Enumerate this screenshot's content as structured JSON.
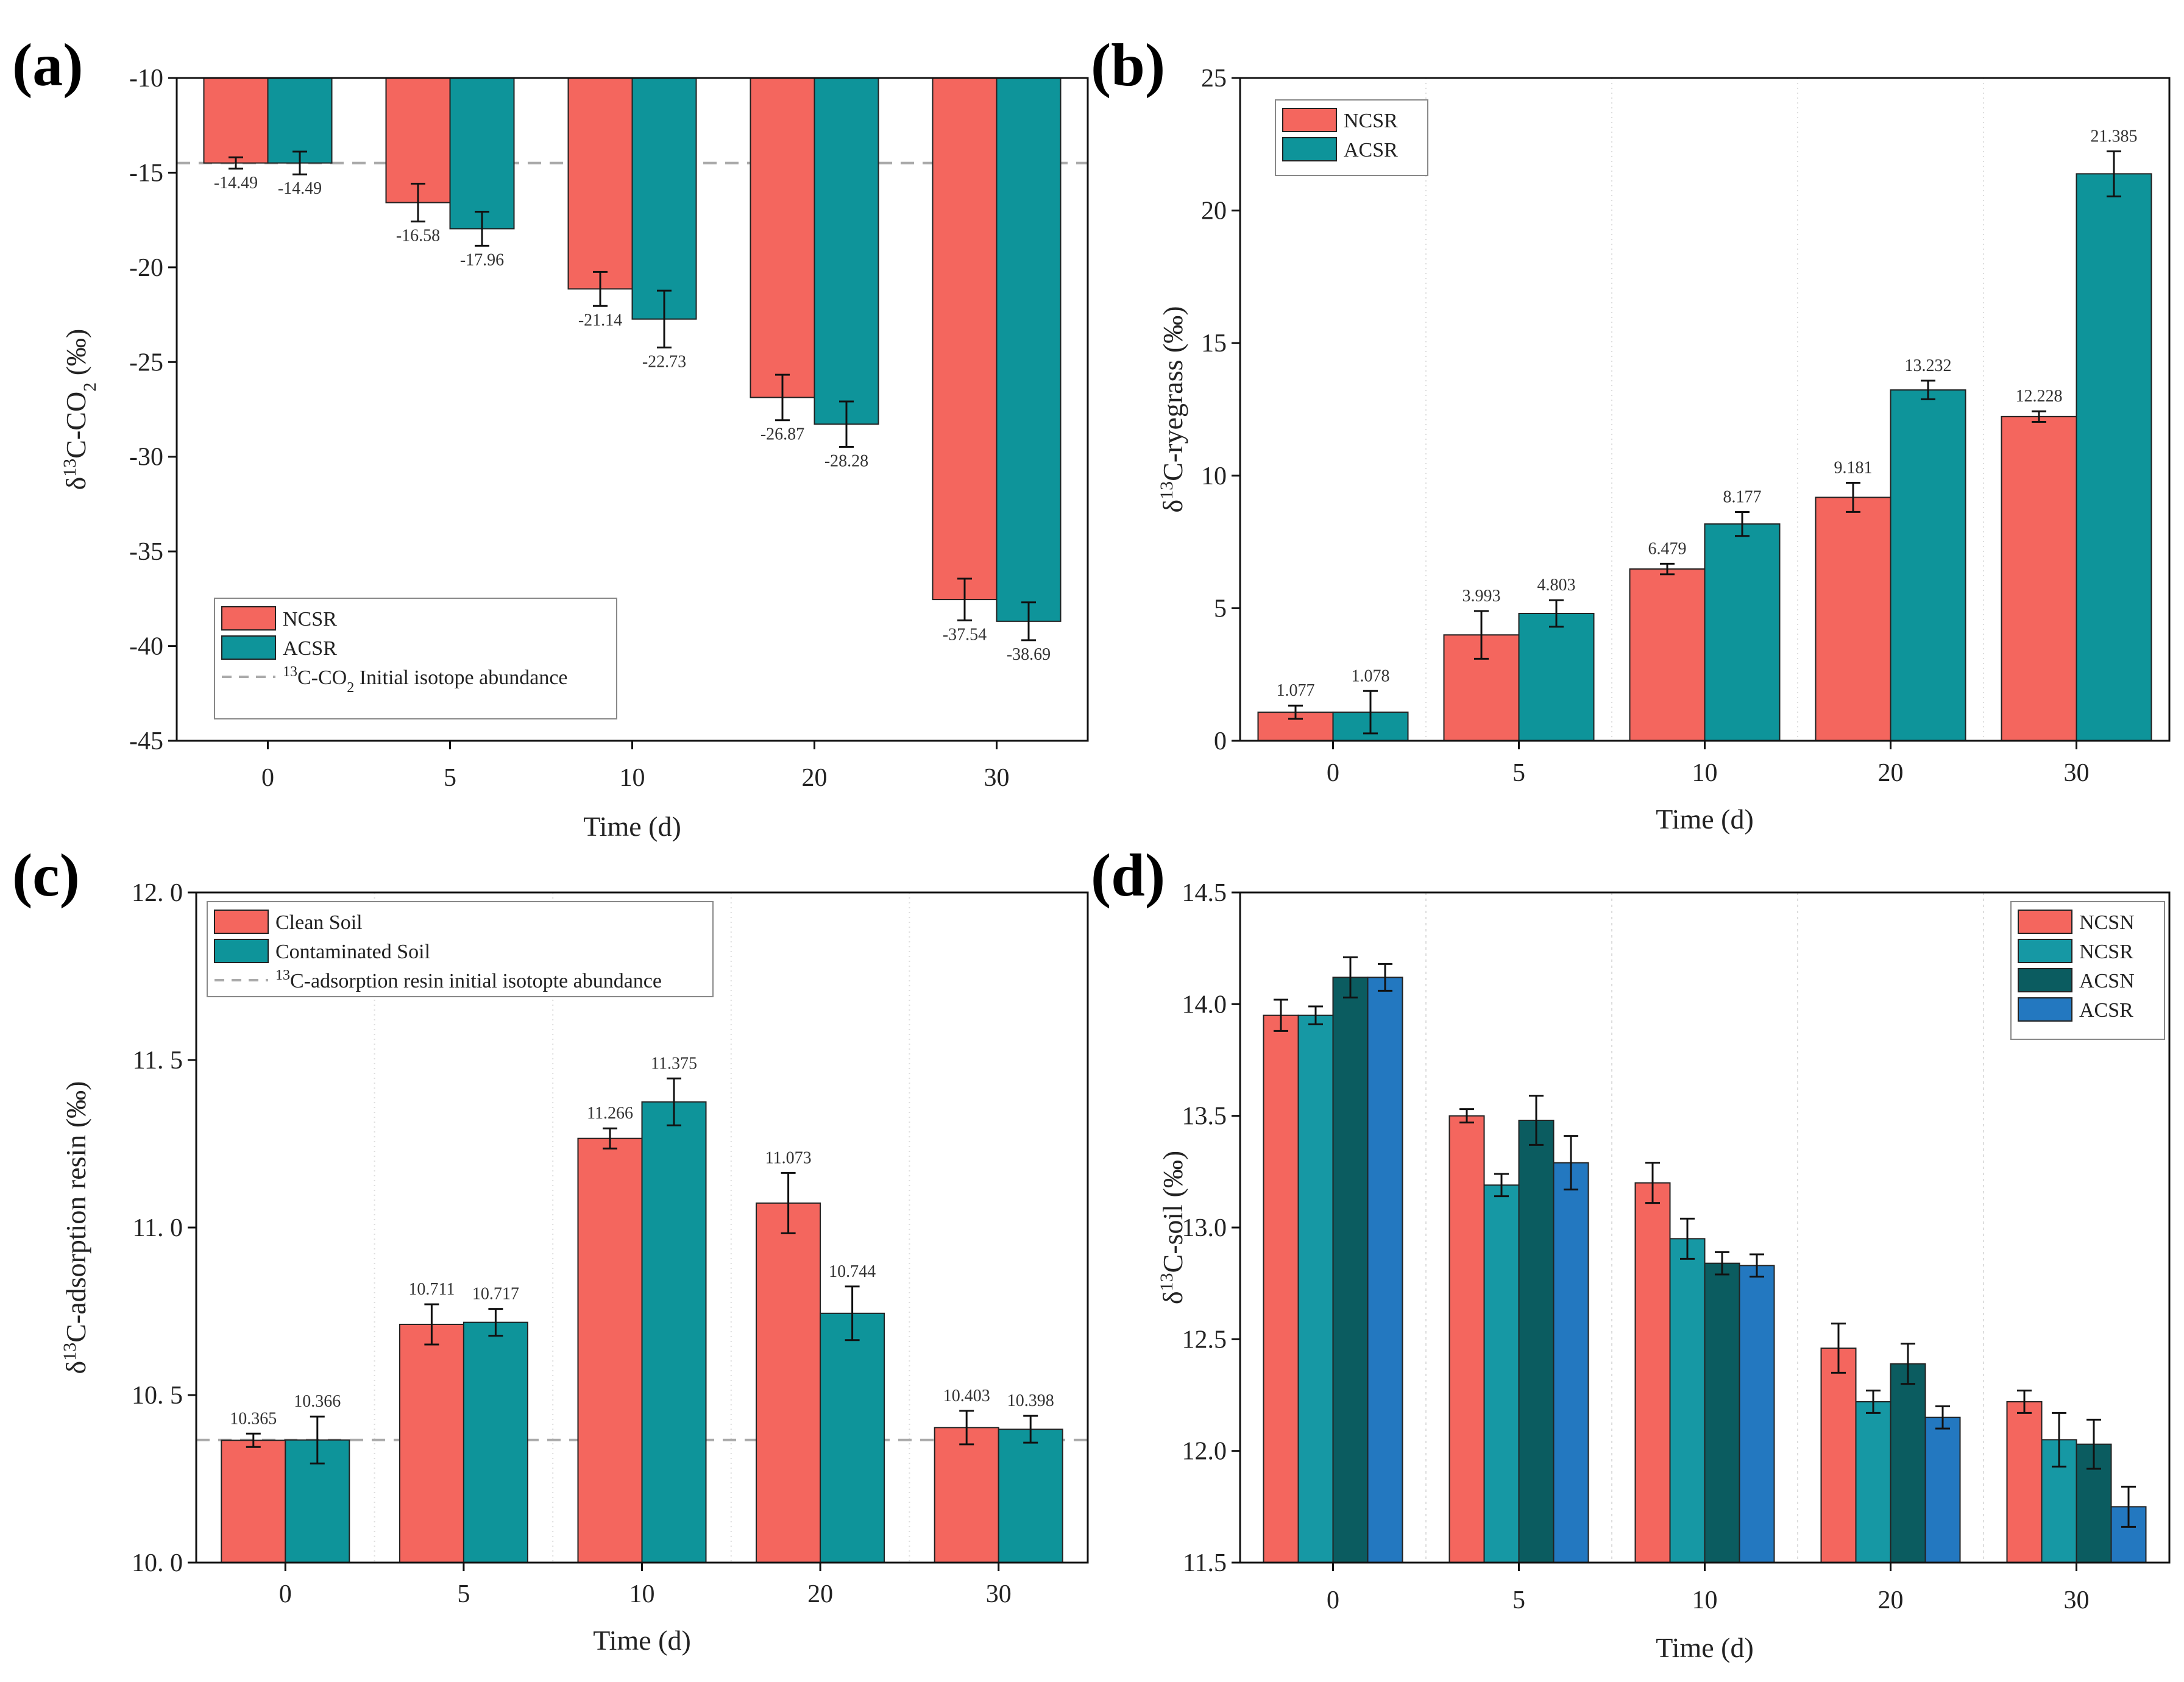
{
  "colors": {
    "ncsr_red": "#F4665E",
    "acsr_teal": "#0E949A",
    "ncsr_d_teal": "#1698A4",
    "acsn_dark": "#0B5C60",
    "acsr_blue": "#2378C0",
    "dashed": "#aaaaaa",
    "grid": "#dddddd"
  },
  "chart_data": [
    {
      "panel": "(a)",
      "type": "bar",
      "title": "",
      "xlabel": "Time (d)",
      "ylabel_main": "δ",
      "ylabel_sup": "13",
      "ylabel_rest": "C-CO",
      "ylabel_sub": "2",
      "ylabel_unit": " (‰)",
      "categories": [
        "0",
        "5",
        "10",
        "20",
        "30"
      ],
      "ylim": [
        -45,
        -10
      ],
      "yticks": [
        -10,
        -15,
        -20,
        -25,
        -30,
        -35,
        -40,
        -45
      ],
      "ytick_labels": [
        "-10",
        "-15",
        "-20",
        "-25",
        "-30",
        "-35",
        "-40",
        "-45"
      ],
      "baseline": -10,
      "series": [
        {
          "name": "NCSR",
          "color_key": "ncsr_red",
          "values": [
            -14.49,
            -16.58,
            -21.14,
            -26.87,
            -37.54
          ],
          "errors": [
            0.3,
            1.0,
            0.9,
            1.2,
            1.1
          ],
          "labels": [
            "-14.49",
            "-16.58",
            "-21.14",
            "-26.87",
            "-37.54"
          ]
        },
        {
          "name": "ACSR",
          "color_key": "acsr_teal",
          "values": [
            -14.49,
            -17.96,
            -22.73,
            -28.28,
            -38.69
          ],
          "errors": [
            0.6,
            0.9,
            1.5,
            1.2,
            1.0
          ],
          "labels": [
            "-14.49",
            "-17.96",
            "-22.73",
            "-28.28",
            "-38.69"
          ]
        }
      ],
      "reference_line": {
        "value": -14.49,
        "label_sup": "13",
        "label_pre": "C-CO",
        "label_sub": "2",
        "label_post": " Initial isotope abundance"
      },
      "legend_position": "bottom-left",
      "grid": false
    },
    {
      "panel": "(b)",
      "type": "bar",
      "title": "",
      "xlabel": "Time (d)",
      "ylabel_main": "δ",
      "ylabel_sup": "13",
      "ylabel_rest": "C-ryegrass",
      "ylabel_sub": "",
      "ylabel_unit": " (‰)",
      "categories": [
        "0",
        "5",
        "10",
        "20",
        "30"
      ],
      "ylim": [
        0,
        25
      ],
      "yticks": [
        0,
        5,
        10,
        15,
        20,
        25
      ],
      "ytick_labels": [
        "0",
        "5",
        "10",
        "15",
        "20",
        "25"
      ],
      "baseline": 0,
      "series": [
        {
          "name": "NCSR",
          "color_key": "ncsr_red",
          "values": [
            1.077,
            3.993,
            6.479,
            9.181,
            12.228
          ],
          "errors": [
            0.25,
            0.9,
            0.2,
            0.55,
            0.2
          ],
          "labels": [
            "1.077",
            "3.993",
            "6.479",
            "9.181",
            "12.228"
          ]
        },
        {
          "name": "ACSR",
          "color_key": "acsr_teal",
          "values": [
            1.078,
            4.803,
            8.177,
            13.232,
            21.385
          ],
          "errors": [
            0.8,
            0.5,
            0.45,
            0.35,
            0.85
          ],
          "labels": [
            "1.078",
            "4.803",
            "8.177",
            "13.232",
            "21.385"
          ]
        }
      ],
      "legend_position": "top-left",
      "grid": true
    },
    {
      "panel": "(c)",
      "type": "bar",
      "title": "",
      "xlabel": "Time (d)",
      "ylabel_main": "δ",
      "ylabel_sup": "13",
      "ylabel_rest": "C-adsorption resin",
      "ylabel_sub": "",
      "ylabel_unit": " (‰)",
      "categories": [
        "0",
        "5",
        "10",
        "20",
        "30"
      ],
      "ylim": [
        10.0,
        12.0
      ],
      "yticks": [
        10.0,
        10.5,
        11.0,
        11.5,
        12.0
      ],
      "ytick_labels": [
        "10. 0",
        "10. 5",
        "11. 0",
        "11. 5",
        "12. 0"
      ],
      "baseline": 10.0,
      "series": [
        {
          "name": "Clean Soil",
          "color_key": "ncsr_red",
          "values": [
            10.365,
            10.711,
            11.266,
            11.073,
            10.403
          ],
          "errors": [
            0.02,
            0.06,
            0.03,
            0.09,
            0.05
          ],
          "labels": [
            "10.365",
            "10.711",
            "11.266",
            "11.073",
            "10.403"
          ]
        },
        {
          "name": "Contaminated Soil",
          "color_key": "acsr_teal",
          "values": [
            10.366,
            10.717,
            11.375,
            10.744,
            10.398
          ],
          "errors": [
            0.07,
            0.04,
            0.07,
            0.08,
            0.04
          ],
          "labels": [
            "10.366",
            "10.717",
            "11.375",
            "10.744",
            "10.398"
          ]
        }
      ],
      "reference_line": {
        "value": 10.366,
        "label_sup": "13",
        "label_pre": "C-adsorption resin initial isotopte abundance",
        "label_sub": "",
        "label_post": ""
      },
      "legend_position": "top-left",
      "grid": true
    },
    {
      "panel": "(d)",
      "type": "bar",
      "title": "",
      "xlabel": "Time (d)",
      "ylabel_main": "δ",
      "ylabel_sup": "13",
      "ylabel_rest": "C-soil",
      "ylabel_sub": "",
      "ylabel_unit": " (‰)",
      "categories": [
        "0",
        "5",
        "10",
        "20",
        "30"
      ],
      "ylim": [
        11.5,
        14.5
      ],
      "yticks": [
        11.5,
        12.0,
        12.5,
        13.0,
        13.5,
        14.0,
        14.5
      ],
      "ytick_labels": [
        "11.5",
        "12.0",
        "12.5",
        "13.0",
        "13.5",
        "14.0",
        "14.5"
      ],
      "baseline": 11.5,
      "series": [
        {
          "name": "NCSN",
          "color_key": "ncsr_red",
          "values": [
            13.95,
            13.5,
            13.2,
            12.46,
            12.22
          ],
          "errors": [
            0.07,
            0.03,
            0.09,
            0.11,
            0.05
          ],
          "labels": []
        },
        {
          "name": "NCSR",
          "color_key": "ncsr_d_teal",
          "values": [
            13.95,
            13.19,
            12.95,
            12.22,
            12.05
          ],
          "errors": [
            0.04,
            0.05,
            0.09,
            0.05,
            0.12
          ],
          "labels": []
        },
        {
          "name": "ACSN",
          "color_key": "acsn_dark",
          "values": [
            14.12,
            13.48,
            12.84,
            12.39,
            12.03
          ],
          "errors": [
            0.09,
            0.11,
            0.05,
            0.09,
            0.11
          ],
          "labels": []
        },
        {
          "name": "ACSR",
          "color_key": "acsr_blue",
          "values": [
            14.12,
            13.29,
            12.83,
            12.15,
            11.75
          ],
          "errors": [
            0.06,
            0.12,
            0.05,
            0.05,
            0.09
          ],
          "labels": []
        }
      ],
      "legend_position": "top-right",
      "grid": true,
      "dotted_separators": true
    }
  ]
}
